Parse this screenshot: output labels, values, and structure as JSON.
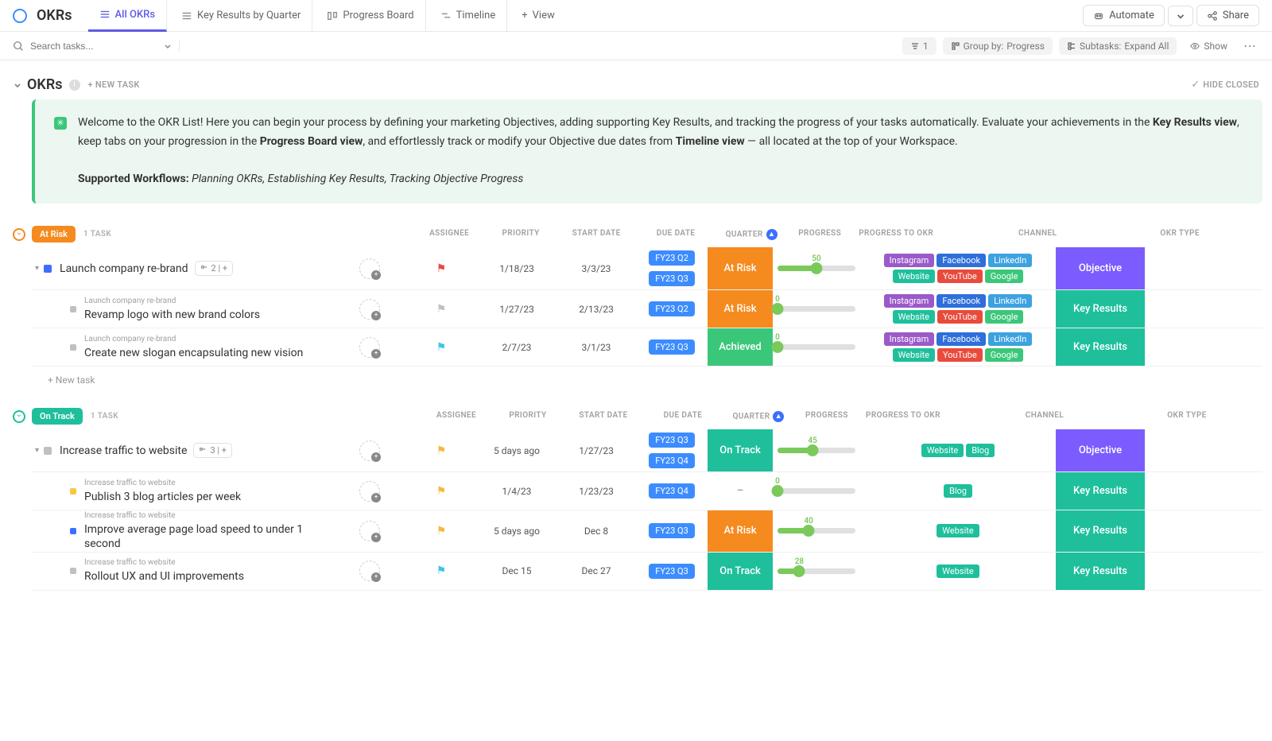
{
  "nav": {
    "title": "OKRs",
    "tabs": [
      {
        "label": "All OKRs",
        "active": true
      },
      {
        "label": "Key Results by Quarter",
        "active": false
      },
      {
        "label": "Progress Board",
        "active": false
      },
      {
        "label": "Timeline",
        "active": false
      }
    ],
    "add_view": "View",
    "automate": "Automate",
    "share": "Share"
  },
  "toolbar": {
    "search_placeholder": "Search tasks...",
    "filter_count": "1",
    "group_by_label": "Group by:",
    "group_by_value": "Progress",
    "subtasks_label": "Subtasks:",
    "subtasks_value": "Expand All",
    "show": "Show"
  },
  "section": {
    "title": "OKRs",
    "new_task": "+ NEW TASK",
    "hide_closed": "HIDE CLOSED"
  },
  "info": {
    "text_part1": "Welcome to the OKR List! Here you can begin your process by defining your marketing Objectives, adding supporting Key Results, and tracking the progress of your tasks automatically. Evaluate your achievements in the ",
    "bold1": "Key Results view",
    "text_part2": ", keep tabs on your progression in the ",
    "bold2": "Progress Board view",
    "text_part3": ", and effortlessly track or modify your Objective due dates from ",
    "bold3": "Timeline view",
    "text_part4": " — all located at the top of your Workspace.",
    "supported_label": "Supported Workflows:",
    "supported_values": "Planning OKRs, Establishing Key Results, Tracking Objective Progress"
  },
  "columns": {
    "assignee": "ASSIGNEE",
    "priority": "PRIORITY",
    "start": "START DATE",
    "due": "DUE DATE",
    "quarter": "QUARTER",
    "progress": "PROGRESS",
    "progress_to_okr": "PROGRESS TO OKR",
    "channel": "CHANNEL",
    "okr_type": "OKR TYPE"
  },
  "colors": {
    "at_risk": "#f58a1f",
    "on_track": "#1fbf9c",
    "achieved": "#3bc77a",
    "objective": "#7c5cff",
    "key_results": "#1fbf9c",
    "quarter": "#3c8cff",
    "instagram": "#9b59c9",
    "facebook": "#2e6fdb",
    "linkedin": "#3ca2e0",
    "website": "#1fbf9c",
    "youtube": "#e84b3c",
    "google": "#3bc77a",
    "blog": "#1fbf9c",
    "task_blue": "#3c6fff",
    "task_yellow": "#f5c842",
    "task_grey": "#c0c0c0",
    "flag_red": "#e84b3c",
    "flag_grey": "#c0c0c0",
    "flag_cyan": "#3cc7e0",
    "flag_yellow": "#f5b942"
  },
  "channel_labels": {
    "instagram": "Instagram",
    "facebook": "Facebook",
    "linkedin": "LinkedIn",
    "website": "Website",
    "youtube": "YouTube",
    "google": "Google",
    "blog": "Blog"
  },
  "groups": [
    {
      "status": "At Risk",
      "status_color": "#f58a1f",
      "border_color": "#f58a1f",
      "task_count": "1 TASK",
      "rows": [
        {
          "name": "Launch company re-brand",
          "level": 0,
          "status_sq": "#3c6fff",
          "subtasks": "2",
          "flag": "#e84b3c",
          "start": "1/18/23",
          "due": "3/3/23",
          "quarters": [
            "FY23 Q2",
            "FY23 Q3"
          ],
          "progress": "At Risk",
          "progress_color": "#f58a1f",
          "slider": 50,
          "channels": [
            "instagram",
            "facebook",
            "linkedin",
            "website",
            "youtube",
            "google"
          ],
          "type": "Objective",
          "type_color": "#7c5cff"
        },
        {
          "name": "Revamp logo with new brand colors",
          "parent": "Launch company re-brand",
          "level": 1,
          "status_sq": "#c0c0c0",
          "flag": "#c0c0c0",
          "start": "1/27/23",
          "due": "2/13/23",
          "quarters": [
            "FY23 Q2"
          ],
          "progress": "At Risk",
          "progress_color": "#f58a1f",
          "slider": 0,
          "channels": [
            "instagram",
            "facebook",
            "linkedin",
            "website",
            "youtube",
            "google"
          ],
          "type": "Key Results",
          "type_color": "#1fbf9c"
        },
        {
          "name": "Create new slogan encapsulating new vision",
          "parent": "Launch company re-brand",
          "level": 1,
          "status_sq": "#c0c0c0",
          "flag": "#3cc7e0",
          "start": "2/7/23",
          "due": "3/1/23",
          "quarters": [
            "FY23 Q3"
          ],
          "progress": "Achieved",
          "progress_color": "#3bc77a",
          "slider": 0,
          "channels": [
            "instagram",
            "facebook",
            "linkedin",
            "website",
            "youtube",
            "google"
          ],
          "type": "Key Results",
          "type_color": "#1fbf9c"
        }
      ],
      "new_task": "+ New task"
    },
    {
      "status": "On Track",
      "status_color": "#1fbf9c",
      "border_color": "#1fbf9c",
      "task_count": "1 TASK",
      "rows": [
        {
          "name": "Increase traffic to website",
          "level": 0,
          "status_sq": "#c0c0c0",
          "subtasks": "3",
          "flag": "#f5b942",
          "start": "5 days ago",
          "due": "1/27/23",
          "quarters": [
            "FY23 Q3",
            "FY23 Q4"
          ],
          "progress": "On Track",
          "progress_color": "#1fbf9c",
          "slider": 45,
          "channels": [
            "website",
            "blog"
          ],
          "type": "Objective",
          "type_color": "#7c5cff"
        },
        {
          "name": "Publish 3 blog articles per week",
          "parent": "Increase traffic to website",
          "level": 1,
          "status_sq": "#f5c842",
          "flag": "#f5b942",
          "start": "1/4/23",
          "due": "1/23/23",
          "quarters": [
            "FY23 Q4"
          ],
          "progress": "–",
          "progress_color": "#ffffff",
          "progress_text_color": "#999",
          "slider": 0,
          "channels": [
            "blog"
          ],
          "type": "Key Results",
          "type_color": "#1fbf9c"
        },
        {
          "name": "Improve average page load speed to under 1 second",
          "parent": "Increase traffic to website",
          "level": 1,
          "status_sq": "#3c6fff",
          "flag": "#f5b942",
          "start": "5 days ago",
          "due": "Dec 8",
          "quarters": [
            "FY23 Q3"
          ],
          "progress": "At Risk",
          "progress_color": "#f58a1f",
          "slider": 40,
          "channels": [
            "website"
          ],
          "type": "Key Results",
          "type_color": "#1fbf9c"
        },
        {
          "name": "Rollout UX and UI improvements",
          "parent": "Increase traffic to website",
          "level": 1,
          "status_sq": "#c0c0c0",
          "flag": "#3cc7e0",
          "start": "Dec 15",
          "due": "Dec 27",
          "quarters": [
            "FY23 Q3"
          ],
          "progress": "On Track",
          "progress_color": "#1fbf9c",
          "slider": 28,
          "channels": [
            "website"
          ],
          "type": "Key Results",
          "type_color": "#1fbf9c"
        }
      ]
    }
  ]
}
